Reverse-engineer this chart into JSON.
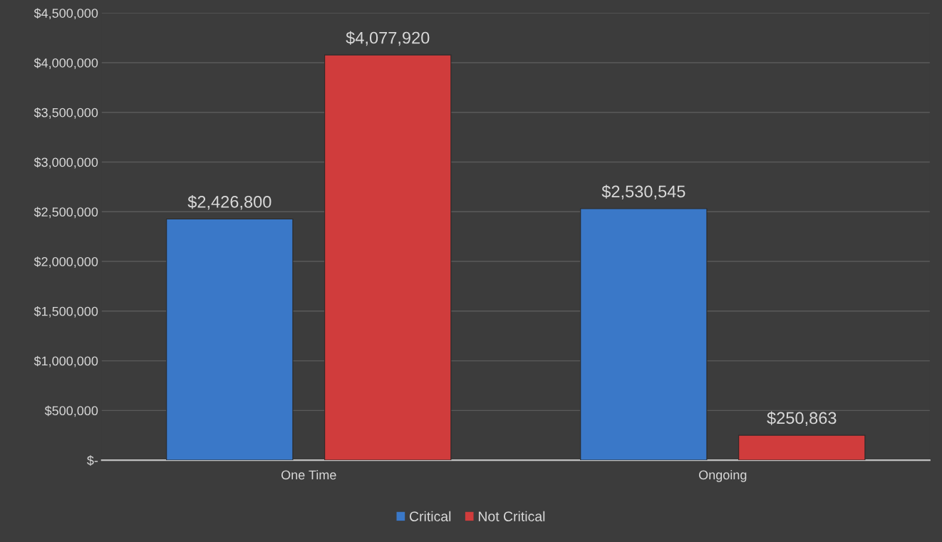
{
  "chart_data": {
    "type": "bar",
    "categories": [
      "One Time",
      "Ongoing"
    ],
    "series": [
      {
        "name": "Critical",
        "color": "#3a78c8",
        "values": [
          2426800,
          2530545
        ],
        "value_labels": [
          "$2,426,800",
          "$2,530,545"
        ]
      },
      {
        "name": "Not Critical",
        "color": "#d03c3c",
        "values": [
          4077920,
          250863
        ],
        "value_labels": [
          "$4,077,920",
          "$250,863"
        ]
      }
    ],
    "ylim": [
      0,
      4500000
    ],
    "yticks": [
      {
        "value": 0,
        "label": "$-"
      },
      {
        "value": 500000,
        "label": "$500,000"
      },
      {
        "value": 1000000,
        "label": "$1,000,000"
      },
      {
        "value": 1500000,
        "label": "$1,500,000"
      },
      {
        "value": 2000000,
        "label": "$2,000,000"
      },
      {
        "value": 2500000,
        "label": "$2,500,000"
      },
      {
        "value": 3000000,
        "label": "$3,000,000"
      },
      {
        "value": 3500000,
        "label": "$3,500,000"
      },
      {
        "value": 4000000,
        "label": "$4,000,000"
      },
      {
        "value": 4500000,
        "label": "$4,500,000"
      }
    ],
    "grid": "y",
    "legend": "bottom"
  }
}
